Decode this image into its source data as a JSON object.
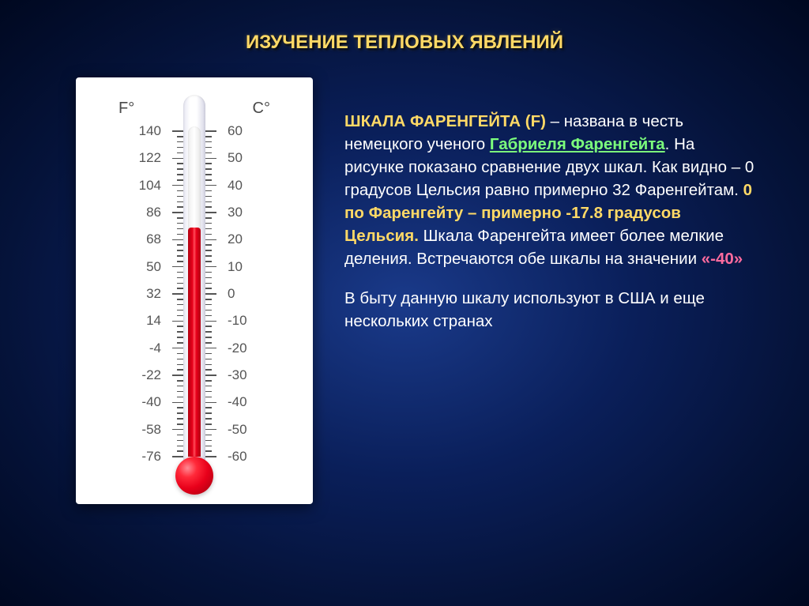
{
  "title": "ИЗУЧЕНИЕ ТЕПЛОВЫХ ЯВЛЕНИЙ",
  "thermometer": {
    "type": "infographic",
    "unit_f_label": "F°",
    "unit_c_label": "C°",
    "background_color": "#ffffff",
    "label_color": "#555555",
    "label_fontsize": 17,
    "tick_color": "#555555",
    "mercury_color": "#e8001a",
    "bulb_color": "#e8001a",
    "scale": [
      {
        "f": "140",
        "c": "60"
      },
      {
        "f": "122",
        "c": "50"
      },
      {
        "f": "104",
        "c": "40"
      },
      {
        "f": "86",
        "c": "30"
      },
      {
        "f": "68",
        "c": "20"
      },
      {
        "f": "50",
        "c": "10"
      },
      {
        "f": "32",
        "c": "0"
      },
      {
        "f": "14",
        "c": "-10"
      },
      {
        "f": "-4",
        "c": "-20"
      },
      {
        "f": "-22",
        "c": "-30"
      },
      {
        "f": "-40",
        "c": "-40"
      },
      {
        "f": "-58",
        "c": "-50"
      },
      {
        "f": "-76",
        "c": "-60"
      }
    ],
    "minor_ticks_between": 4,
    "mercury_level_c": 22,
    "c_range": [
      -60,
      60
    ]
  },
  "text": {
    "lead": "ШКАЛА ФАРЕНГЕЙТА (F)",
    "p1a": " – названа в честь немецкого ученого ",
    "name": "Габриеля Фаренгейта",
    "p1b": ". На рисунке показано сравнение двух шкал. Как видно – 0 градусов Цельсия равно примерно 32 Фаренгейтам. ",
    "fzero": "0 по Фаренгейту – примерно -17.8 градусов Цельсия.",
    "p1c": " Шкала Фаренгейта имеет более мелкие деления. Встречаются обе шкалы на значении ",
    "neg40": "«-40»",
    "p2": "В быту данную шкалу используют в США и еще нескольких странах"
  },
  "colors": {
    "title": "#ffd966",
    "body_text": "#ffffff",
    "highlight_green": "#7cff7c",
    "highlight_pink": "#ff6b9e",
    "highlight_gold": "#ffd966",
    "slide_bg_center": "#1a3a8a",
    "slide_bg_edge": "#000820"
  }
}
